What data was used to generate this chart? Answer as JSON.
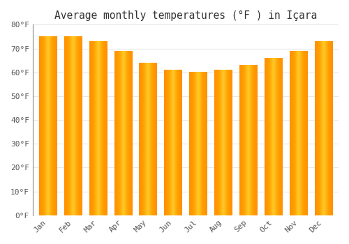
{
  "title": "Average monthly temperatures (°F ) in Içara",
  "months": [
    "Jan",
    "Feb",
    "Mar",
    "Apr",
    "May",
    "Jun",
    "Jul",
    "Aug",
    "Sep",
    "Oct",
    "Nov",
    "Dec"
  ],
  "values": [
    75,
    75,
    73,
    69,
    64,
    61,
    60,
    61,
    63,
    66,
    69,
    73
  ],
  "bar_color_center": "#FFB300",
  "bar_color_edge": "#F5A000",
  "ylim": [
    0,
    80
  ],
  "yticks": [
    0,
    10,
    20,
    30,
    40,
    50,
    60,
    70,
    80
  ],
  "ytick_labels": [
    "0°F",
    "10°F",
    "20°F",
    "30°F",
    "40°F",
    "50°F",
    "60°F",
    "70°F",
    "80°F"
  ],
  "bg_color": "#FFFFFF",
  "grid_color": "#E8E8E8",
  "title_fontsize": 10.5,
  "tick_fontsize": 8,
  "font_family": "monospace",
  "bar_width": 0.7,
  "left_spine_color": "#888888"
}
